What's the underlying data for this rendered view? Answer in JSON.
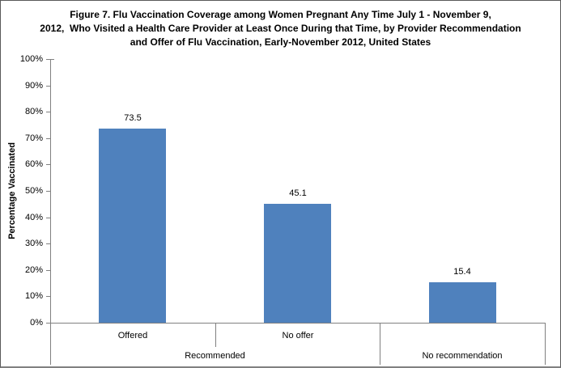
{
  "title": {
    "line1": "Figure 7. Flu Vaccination Coverage among Women Pregnant Any Time July 1 - November 9,",
    "line2": "2012,  Who Visited a Health Care Provider at Least Once During that Time, by Provider Recommendation",
    "line3": "and Offer of Flu Vaccination, Early-November 2012, United States"
  },
  "chart_data": {
    "type": "bar",
    "title": "Figure 7. Flu Vaccination Coverage among Women Pregnant Any Time July 1 - November 9, 2012, Who Visited a Health Care Provider at Least Once During that Time, by Provider Recommendation and Offer of Flu Vaccination, Early-November 2012, United States",
    "categories": [
      "Offered",
      "No offer",
      "No recommendation"
    ],
    "category_groups": [
      "Recommended",
      "Recommended",
      "No recommendation"
    ],
    "values": [
      73.5,
      45.1,
      15.4
    ],
    "value_labels": [
      "73.5",
      "45.1",
      "15.4"
    ],
    "xlabel": "",
    "ylabel": "Percentage Vaccinated",
    "ylim": [
      0,
      100
    ],
    "ytick_labels": [
      "0%",
      "10%",
      "20%",
      "30%",
      "40%",
      "50%",
      "60%",
      "70%",
      "80%",
      "90%",
      "100%"
    ],
    "grid": false,
    "legend": "none",
    "bar_color": "#4F81BD",
    "axis_color": "#808080",
    "x_axis_rows": {
      "sub_labels": [
        {
          "label": "Offered",
          "slot": 0
        },
        {
          "label": "No offer",
          "slot": 1
        },
        {
          "label": "",
          "slot": 2
        }
      ],
      "group_labels": [
        {
          "label": "Recommended",
          "start": 0,
          "end": 2
        },
        {
          "label": "No recommendation",
          "start": 2,
          "end": 3
        }
      ]
    }
  }
}
